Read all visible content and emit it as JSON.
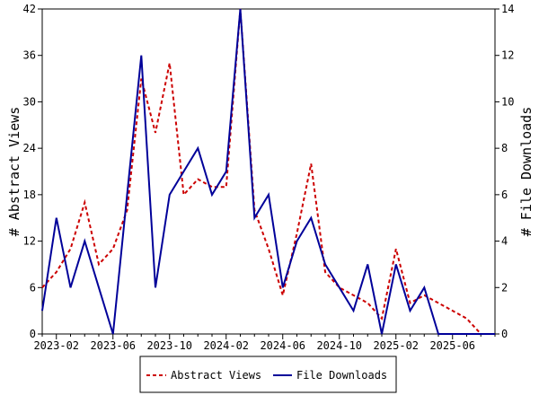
{
  "chart_data": {
    "type": "line",
    "title": "",
    "x": [
      "2023-01",
      "2023-02",
      "2023-03",
      "2023-04",
      "2023-05",
      "2023-06",
      "2023-07",
      "2023-08",
      "2023-09",
      "2023-10",
      "2023-11",
      "2023-12",
      "2024-01",
      "2024-02",
      "2024-03",
      "2024-04",
      "2024-05",
      "2024-06",
      "2024-07",
      "2024-08",
      "2024-09",
      "2024-10",
      "2024-11",
      "2024-12",
      "2025-01",
      "2025-02",
      "2025-03",
      "2025-04",
      "2025-05",
      "2025-06",
      "2025-07",
      "2025-08",
      "2025-09"
    ],
    "x_ticks": [
      "2023-02",
      "2023-06",
      "2023-10",
      "2024-02",
      "2024-06",
      "2024-10",
      "2025-02",
      "2025-06"
    ],
    "y_left": {
      "label": "# Abstract Views",
      "ticks": [
        0,
        6,
        12,
        18,
        24,
        30,
        36,
        42
      ],
      "ylim": [
        0,
        42
      ]
    },
    "y_right": {
      "label": "# File Downloads",
      "ticks": [
        0,
        2,
        4,
        6,
        8,
        10,
        12,
        14
      ],
      "ylim": [
        0,
        14
      ]
    },
    "series": [
      {
        "name": "Abstract Views",
        "axis": "left",
        "color": "#cc0000",
        "dash": true,
        "values": [
          6,
          8,
          11,
          17,
          9,
          11,
          16,
          33,
          26,
          35,
          18,
          20,
          19,
          19,
          42,
          16,
          11,
          5,
          13,
          22,
          8,
          6,
          5,
          4,
          2,
          11,
          4,
          5,
          4,
          3,
          2,
          0,
          0
        ]
      },
      {
        "name": "File Downloads",
        "axis": "right",
        "color": "#000099",
        "dash": false,
        "values": [
          1,
          5,
          2,
          4,
          2,
          0,
          6,
          12,
          2,
          6,
          7,
          8,
          6,
          7,
          14,
          5,
          6,
          2,
          4,
          5,
          3,
          2,
          1,
          3,
          0,
          3,
          1,
          2,
          0,
          0,
          0,
          0,
          0
        ]
      }
    ],
    "legend": {
      "placement": "bottom"
    },
    "grid": false
  }
}
